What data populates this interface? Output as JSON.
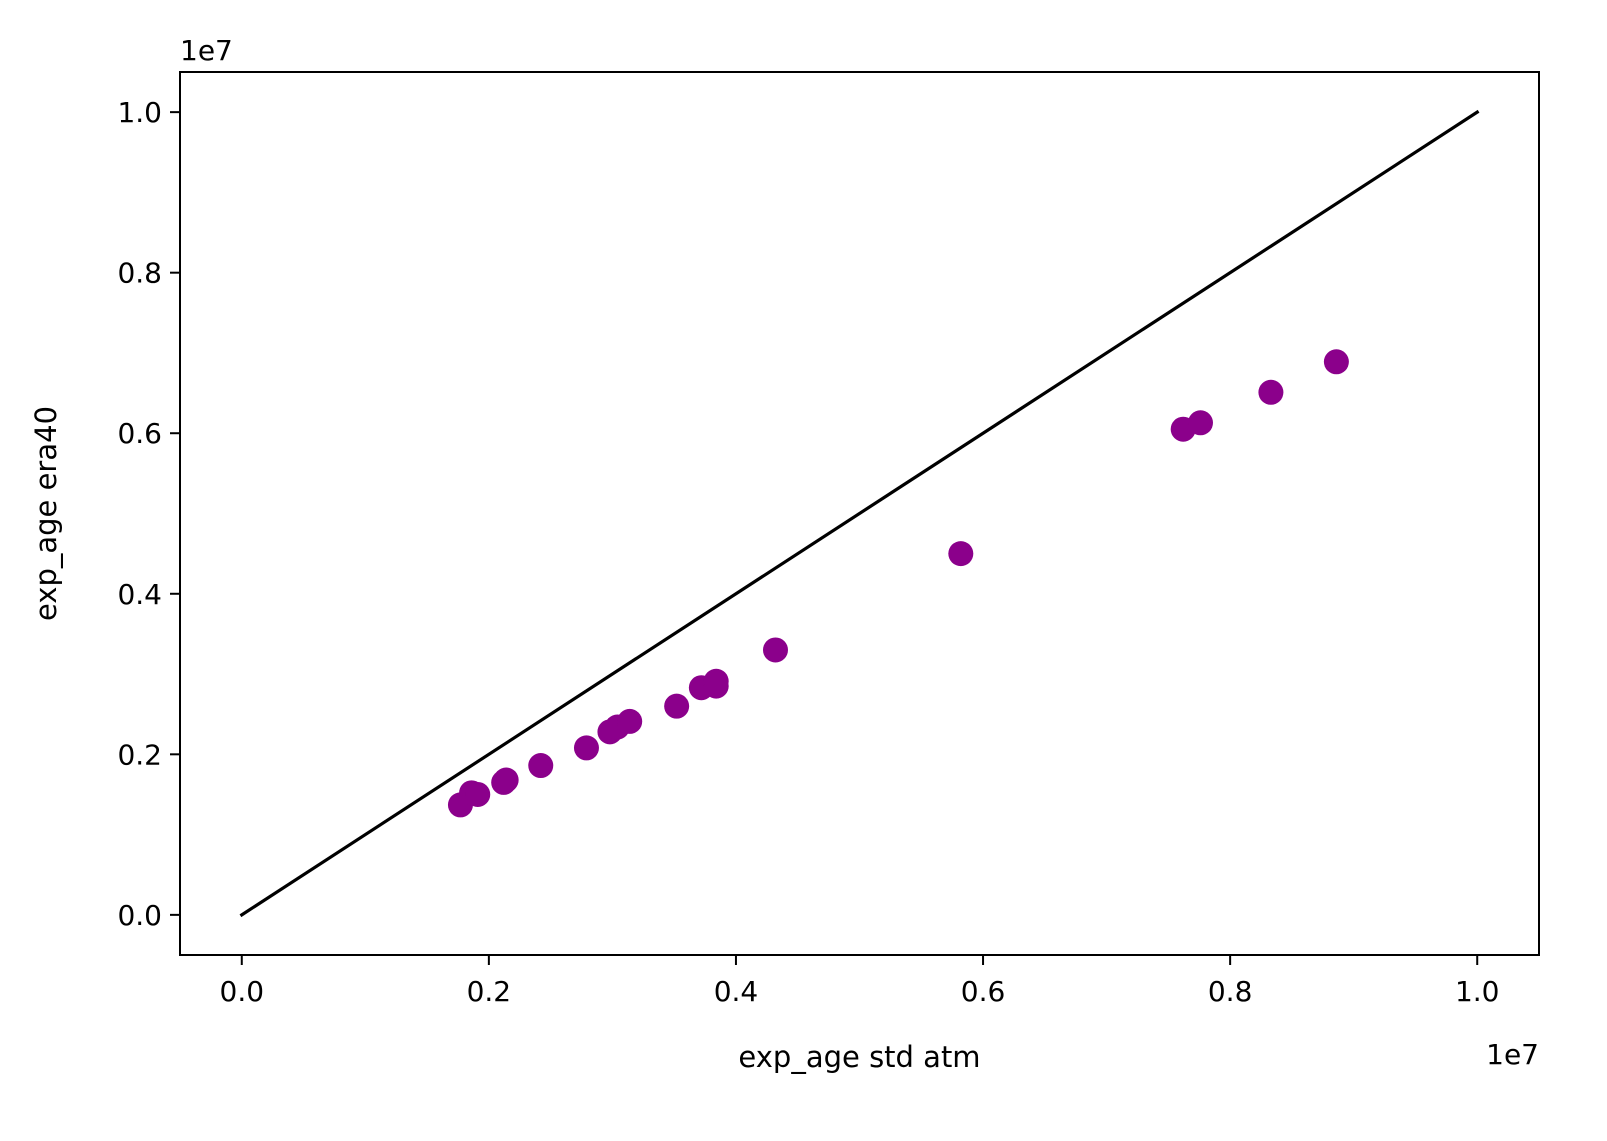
{
  "chart_data": {
    "type": "scatter",
    "title": "",
    "xlabel": "exp_age std atm",
    "ylabel": "exp_age era40",
    "x_offset_label": "1e7",
    "y_offset_label": "1e7",
    "xlim": [
      -0.05,
      1.05
    ],
    "ylim": [
      -0.05,
      1.05
    ],
    "x_ticks": [
      0.0,
      0.2,
      0.4,
      0.6,
      0.8,
      1.0
    ],
    "y_ticks": [
      0.0,
      0.2,
      0.4,
      0.6,
      0.8,
      1.0
    ],
    "x_tick_labels": [
      "0.0",
      "0.2",
      "0.4",
      "0.6",
      "0.8",
      "1.0"
    ],
    "y_tick_labels": [
      "0.0",
      "0.2",
      "0.4",
      "0.6",
      "0.8",
      "1.0"
    ],
    "grid": false,
    "legend": "none",
    "reference_line": {
      "x": [
        0.0,
        1.0
      ],
      "y": [
        0.0,
        1.0
      ],
      "color": "#000000"
    },
    "series": [
      {
        "color": "#8b008b",
        "points": [
          {
            "x": 0.177,
            "y": 0.137
          },
          {
            "x": 0.186,
            "y": 0.152
          },
          {
            "x": 0.191,
            "y": 0.15
          },
          {
            "x": 0.212,
            "y": 0.165
          },
          {
            "x": 0.214,
            "y": 0.168
          },
          {
            "x": 0.242,
            "y": 0.186
          },
          {
            "x": 0.279,
            "y": 0.208
          },
          {
            "x": 0.298,
            "y": 0.228
          },
          {
            "x": 0.304,
            "y": 0.234
          },
          {
            "x": 0.314,
            "y": 0.241
          },
          {
            "x": 0.352,
            "y": 0.26
          },
          {
            "x": 0.372,
            "y": 0.283
          },
          {
            "x": 0.384,
            "y": 0.285
          },
          {
            "x": 0.384,
            "y": 0.291
          },
          {
            "x": 0.432,
            "y": 0.33
          },
          {
            "x": 0.582,
            "y": 0.45
          },
          {
            "x": 0.762,
            "y": 0.605
          },
          {
            "x": 0.776,
            "y": 0.613
          },
          {
            "x": 0.833,
            "y": 0.651
          },
          {
            "x": 0.886,
            "y": 0.689
          }
        ]
      }
    ]
  }
}
